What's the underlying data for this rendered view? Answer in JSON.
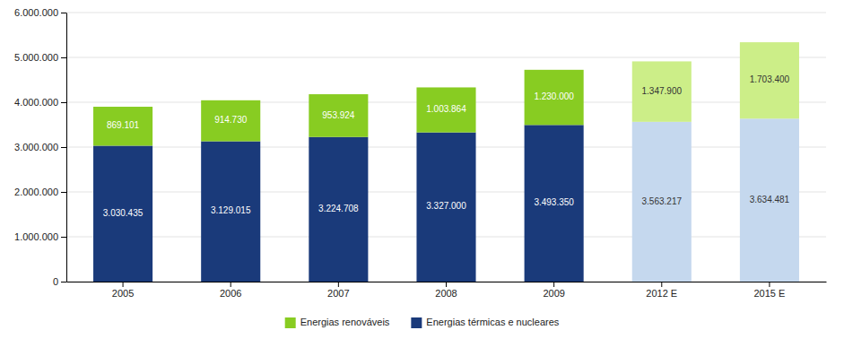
{
  "chart_data": {
    "type": "bar",
    "stacked": true,
    "categories": [
      "2005",
      "2006",
      "2007",
      "2008",
      "2009",
      "2012 E",
      "2015 E"
    ],
    "series": [
      {
        "name": "Energias térmicas e nucleares",
        "color": "#1A3A7A",
        "colors": [
          "#1A3A7A",
          "#1A3A7A",
          "#1A3A7A",
          "#1A3A7A",
          "#1A3A7A",
          "#C5D8EE",
          "#C5D8EE"
        ],
        "values": [
          3030435,
          3129015,
          3224708,
          3327000,
          3493350,
          3563217,
          3634481
        ],
        "value_labels": [
          "3.030.435",
          "3.129.015",
          "3.224.708",
          "3.327.000",
          "3.493.350",
          "3.563.217",
          "3.634.481"
        ]
      },
      {
        "name": "Energias renováveis",
        "color": "#88CC22",
        "colors": [
          "#88CC22",
          "#88CC22",
          "#88CC22",
          "#88CC22",
          "#88CC22",
          "#CCEE88",
          "#CCEE88"
        ],
        "values": [
          869101,
          914730,
          953924,
          1003864,
          1230000,
          1347900,
          1703400
        ],
        "value_labels": [
          "869.101",
          "914.730",
          "953.924",
          "1.003.864",
          "1.230.000",
          "1.347.900",
          "1.703.400"
        ]
      }
    ],
    "data_labels": true,
    "ylim": [
      0,
      6000000
    ],
    "yticks": [
      0,
      {
        "value": 1000000,
        "label": "1.000.000"
      },
      {
        "value": 2000000,
        "label": "2.000.000"
      },
      {
        "value": 3000000,
        "label": "3.000.000"
      },
      {
        "value": 4000000,
        "label": "4.000.000"
      },
      {
        "value": 5000000,
        "label": "5.000.000"
      },
      {
        "value": 6000000,
        "label": "6.000.000"
      }
    ],
    "grid": true,
    "legend": "bottom"
  }
}
